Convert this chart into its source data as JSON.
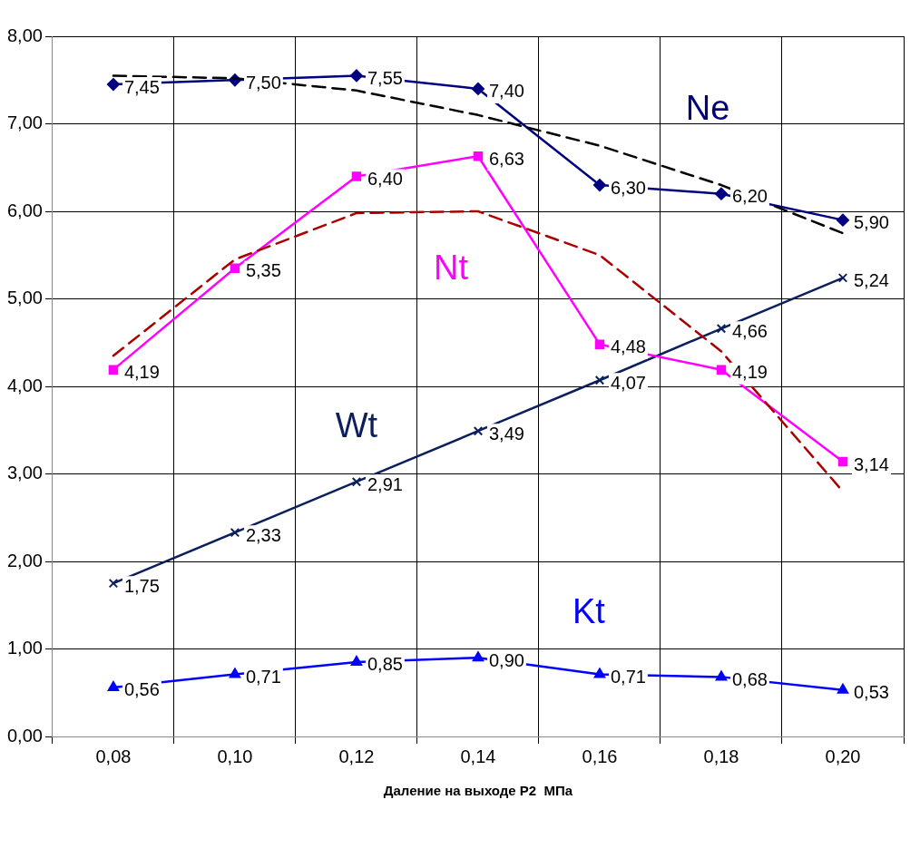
{
  "chart_data": {
    "type": "line",
    "xlabel": "Даление на выходе Р2  МПа",
    "categories": [
      "0,08",
      "0,10",
      "0,12",
      "0,14",
      "0,16",
      "0,18",
      "0,20"
    ],
    "ylim": [
      0,
      8
    ],
    "yticks": [
      {
        "value": 0,
        "label": "0,00"
      },
      {
        "value": 1,
        "label": "1,00"
      },
      {
        "value": 2,
        "label": "2,00"
      },
      {
        "value": 3,
        "label": "3,00"
      },
      {
        "value": 4,
        "label": "4,00"
      },
      {
        "value": 5,
        "label": "5,00"
      },
      {
        "value": 6,
        "label": "6,00"
      },
      {
        "value": 7,
        "label": "7,00"
      },
      {
        "value": 8,
        "label": "8,00"
      }
    ],
    "grid": true,
    "legend": false,
    "series": [
      {
        "type": "line",
        "color": "#000000",
        "line_style": "dashed",
        "marker": "none",
        "values": [
          7.55,
          7.52,
          7.38,
          7.1,
          6.75,
          6.3,
          5.75
        ]
      },
      {
        "type": "line",
        "color": "#aa0000",
        "line_style": "dashed",
        "marker": "none",
        "values": [
          4.35,
          5.45,
          5.98,
          6.0,
          5.5,
          4.4,
          2.8
        ]
      },
      {
        "name": "Ne",
        "color": "#000080",
        "marker": "diamond",
        "values": [
          7.45,
          7.5,
          7.55,
          7.4,
          6.3,
          6.2,
          5.9
        ],
        "value_labels": [
          "7,45",
          "7,50",
          "7,55",
          "7,40",
          "6,30",
          "6,20",
          "5,90"
        ]
      },
      {
        "name": "Nt",
        "color": "#ff00ff",
        "marker": "square",
        "values": [
          4.19,
          5.35,
          6.4,
          6.63,
          4.48,
          4.19,
          3.14
        ],
        "value_labels": [
          "4,19",
          "5,35",
          "6,40",
          "6,63",
          "4,48",
          "4,19",
          "3,14"
        ]
      },
      {
        "name": "Wt",
        "color": "#0a1f5c",
        "marker": "cross",
        "values": [
          1.75,
          2.33,
          2.91,
          3.49,
          4.07,
          4.66,
          5.24
        ],
        "value_labels": [
          "1,75",
          "2,33",
          "2,91",
          "3,49",
          "4,07",
          "4,66",
          "5,24"
        ]
      },
      {
        "name": "Kt",
        "color": "#0000ff",
        "marker": "triangle",
        "values": [
          0.56,
          0.71,
          0.85,
          0.9,
          0.71,
          0.68,
          0.53
        ],
        "value_labels": [
          "0,56",
          "0,71",
          "0,85",
          "0,90",
          "0,71",
          "0,68",
          "0,53"
        ]
      }
    ]
  }
}
